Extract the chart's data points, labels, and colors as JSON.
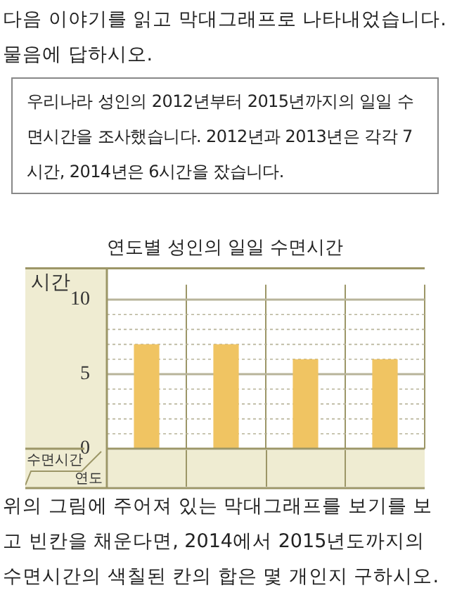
{
  "chart_data": {
    "type": "bar",
    "title": "연도별 성인의 일일 수면시간",
    "ylabel": "시간",
    "annotations": [
      "다음 이야기를 읽고 막대그래프로 나타내었습니다. 물음에 답하시오.",
      "우리나라 성인의 2012년부터 2015년까지의 일일 수면시간을 조사했습니다. 2012년과 2013년은 각각 7시간, 2014년은 6시간을 잤습니다.",
      "수면시간",
      "연도",
      "위의 그림에 주어져 있는 막대그래프를 보기를 보고 빈칸을 채운다면, 2014에서 2015년도까지의 수면시간의 색칠된 칸의 합은 몇 개인지 구하시오."
    ],
    "categories": [
      null,
      null,
      null,
      null
    ],
    "values": [
      7,
      7,
      6,
      6
    ],
    "color": "#f0c462",
    "ylim": [
      0,
      11
    ],
    "yticks": [
      0,
      {
        "value": 1,
        "label": null
      },
      {
        "value": 2,
        "label": null
      },
      {
        "value": 3,
        "label": null
      },
      {
        "value": 4,
        "label": null
      },
      5,
      {
        "value": 6,
        "label": null
      },
      {
        "value": 7,
        "label": null
      },
      {
        "value": 8,
        "label": null
      },
      {
        "value": 9,
        "label": null
      },
      10
    ],
    "grid": true,
    "legend": false
  }
}
